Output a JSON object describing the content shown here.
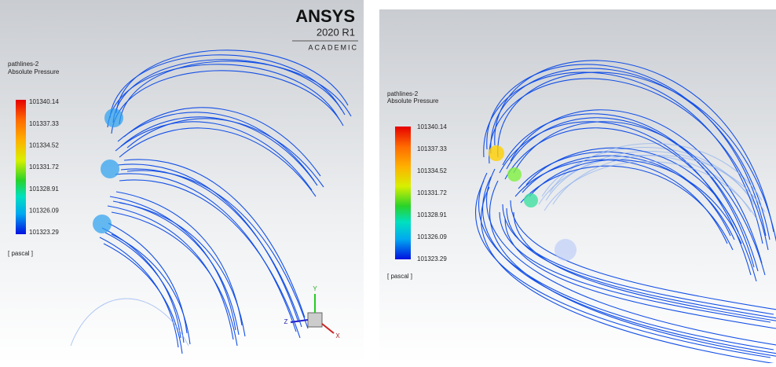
{
  "left_view": {
    "brand": {
      "name": "ANSYS",
      "version": "2020 R1",
      "edition": "ACADEMIC"
    },
    "legend": {
      "object": "pathlines-2",
      "variable": "Absolute Pressure",
      "labels": [
        "101340.14",
        "101337.33",
        "101334.52",
        "101331.72",
        "101328.91",
        "101326.09",
        "101323.29"
      ],
      "unit": "[ pascal ]"
    },
    "triad": {
      "y": "Y",
      "z": "Z",
      "x": "X"
    }
  },
  "right_view": {
    "legend": {
      "object": "pathlines-2",
      "variable": "Absolute Pressure",
      "labels": [
        "101340.14",
        "101337.33",
        "101334.52",
        "101331.72",
        "101328.91",
        "101326.09",
        "101323.29"
      ],
      "unit": "[ pascal ]"
    }
  }
}
